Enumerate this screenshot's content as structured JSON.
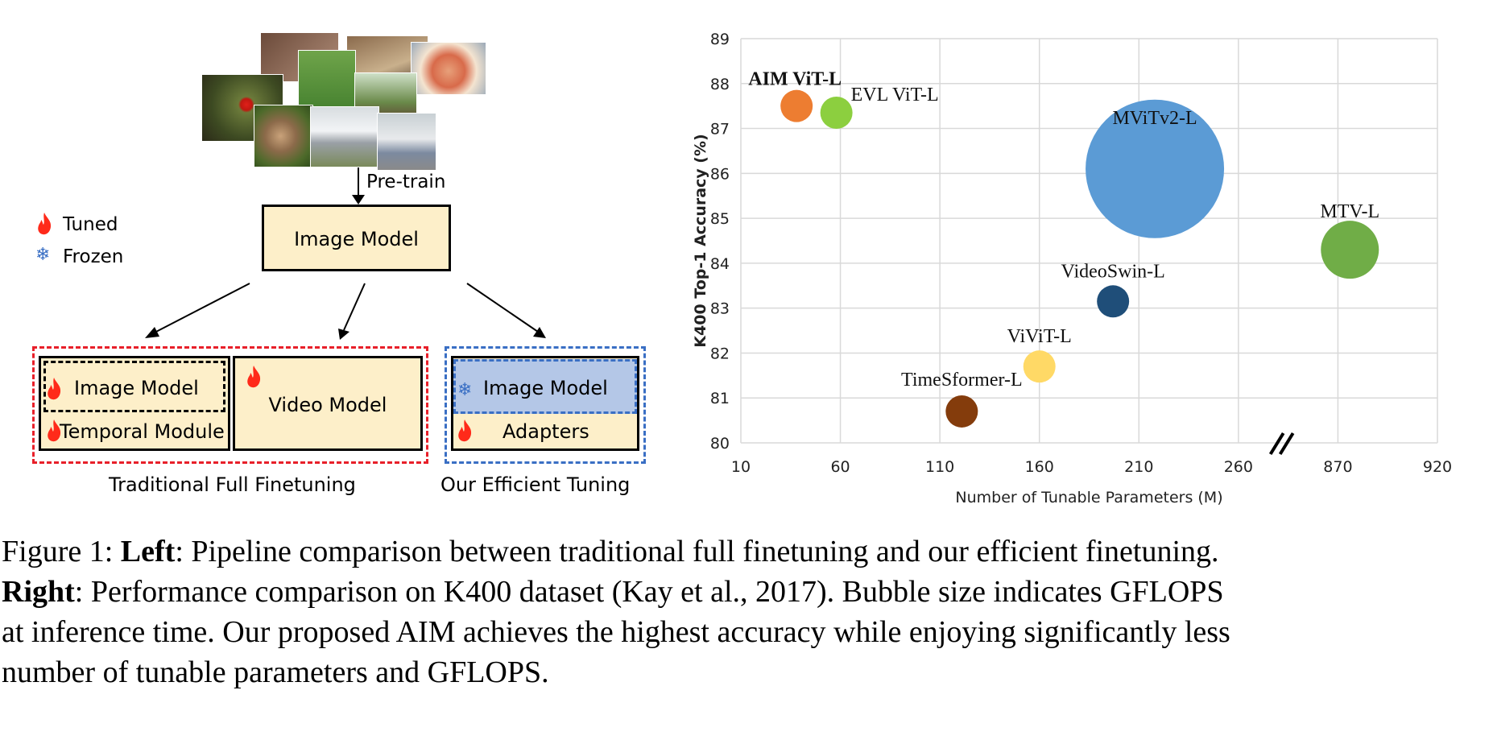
{
  "diagram": {
    "pretrain_label": "Pre-train",
    "top_model": "Image Model",
    "legend": {
      "tuned": "Tuned",
      "frozen": "Frozen"
    },
    "traditional": {
      "image_model": "Image Model",
      "temporal_module": "Temporal Module",
      "video_model": "Video Model",
      "caption": "Traditional Full Finetuning"
    },
    "efficient": {
      "image_model": "Image Model",
      "adapters": "Adapters",
      "caption": "Our Efficient Tuning"
    },
    "colors": {
      "box_fill": "#fdefc9",
      "frozen_fill": "#b4c7e7",
      "red_dash": "#e8202a",
      "blue_dash": "#3a6fc4",
      "flame": "#ff2a1a"
    }
  },
  "chart_data": {
    "type": "scatter",
    "xlabel": "Number of Tunable Parameters (M)",
    "ylabel": "K400 Top-1 Accuracy (%)",
    "x_ticks": [
      "10",
      "60",
      "110",
      "160",
      "210",
      "260",
      "870",
      "920"
    ],
    "y_ticks": [
      "80",
      "81",
      "82",
      "83",
      "84",
      "85",
      "86",
      "87",
      "88",
      "89"
    ],
    "ylim": [
      80,
      89
    ],
    "axis_break": "between 260 and 870",
    "grid": true,
    "points": [
      {
        "name": "AIM ViT-L",
        "x": 38,
        "y": 87.5,
        "size": "small",
        "color": "#ed7d31",
        "bold": true
      },
      {
        "name": "EVL ViT-L",
        "x": 58,
        "y": 87.35,
        "size": "small",
        "color": "#8ccf3f"
      },
      {
        "name": "MViTv2-L",
        "x": 218,
        "y": 86.1,
        "size": "large",
        "color": "#5b9bd5"
      },
      {
        "name": "MTV-L",
        "x": 876,
        "y": 84.3,
        "size": "medium",
        "color": "#70ad47"
      },
      {
        "name": "VideoSwin-L",
        "x": 197,
        "y": 83.15,
        "size": "small",
        "color": "#1f4e79"
      },
      {
        "name": "ViViT-L",
        "x": 160,
        "y": 81.7,
        "size": "small",
        "color": "#ffd966"
      },
      {
        "name": "TimeSformer-L",
        "x": 121,
        "y": 80.7,
        "size": "small",
        "color": "#843c0c"
      }
    ]
  },
  "caption": {
    "fig_label": "Figure 1: ",
    "left_bold": "Left",
    "left_text": ": Pipeline comparison between traditional full finetuning and our efficient finetuning.",
    "right_bold": "Right",
    "right_text": ": Performance comparison on K400 dataset (Kay et al., 2017). Bubble size indicates GFLOPS",
    "line3": "at inference time. Our proposed AIM achieves the highest accuracy while enjoying significantly less",
    "line4": "number of tunable parameters and GFLOPS."
  }
}
